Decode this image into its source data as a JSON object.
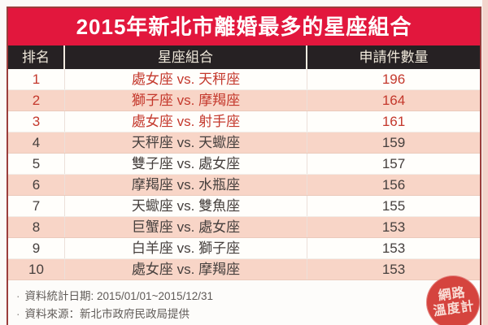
{
  "title": "2015年新北市離婚最多的星座組合",
  "chart_data": {
    "type": "table",
    "title": "2015年新北市離婚最多的星座組合",
    "columns": [
      "排名",
      "星座組合",
      "申請件數量"
    ],
    "rows": [
      [
        1,
        "處女座 vs. 天秤座",
        196
      ],
      [
        2,
        "獅子座 vs. 摩羯座",
        164
      ],
      [
        3,
        "處女座 vs. 射手座",
        161
      ],
      [
        4,
        "天秤座 vs. 天蠍座",
        159
      ],
      [
        5,
        "雙子座 vs. 處女座",
        157
      ],
      [
        6,
        "摩羯座 vs. 水瓶座",
        156
      ],
      [
        7,
        "天蠍座 vs. 雙魚座",
        155
      ],
      [
        8,
        "巨蟹座 vs. 處女座",
        153
      ],
      [
        9,
        "白羊座 vs. 獅子座",
        153
      ],
      [
        10,
        "處女座 vs. 摩羯座",
        153
      ]
    ],
    "highlight_ranks": [
      1,
      2,
      3
    ]
  },
  "footnotes": {
    "bullet": "·",
    "items": [
      "資料統計日期: 2015/01/01~2015/12/31",
      "資料來源：新北市政府民政局提供"
    ]
  },
  "logo": {
    "line1": "網路",
    "line2": "溫度計"
  },
  "colors": {
    "title_bg": "#e2173d",
    "header_bg": "#262123",
    "row_pink": "#f8d5c7",
    "row_white": "#fffefb",
    "highlight_text": "#c4382c",
    "body_text": "#453f3d",
    "table_border": "#9b3d3c",
    "logo_bg": "#d5443e"
  }
}
